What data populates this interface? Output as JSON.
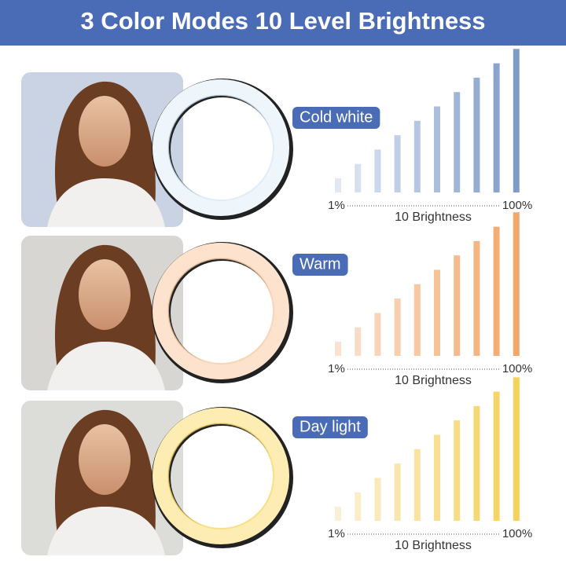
{
  "header": {
    "title": "3 Color Modes 10 Level Brightness"
  },
  "modes": [
    {
      "label": "Cold white",
      "min_label": "1%",
      "max_label": "100%",
      "axis_label": "10 Brightness"
    },
    {
      "label": "Warm",
      "min_label": "1%",
      "max_label": "100%",
      "axis_label": "10 Brightness"
    },
    {
      "label": "Day light",
      "min_label": "1%",
      "max_label": "100%",
      "axis_label": "10 Brightness"
    }
  ]
}
